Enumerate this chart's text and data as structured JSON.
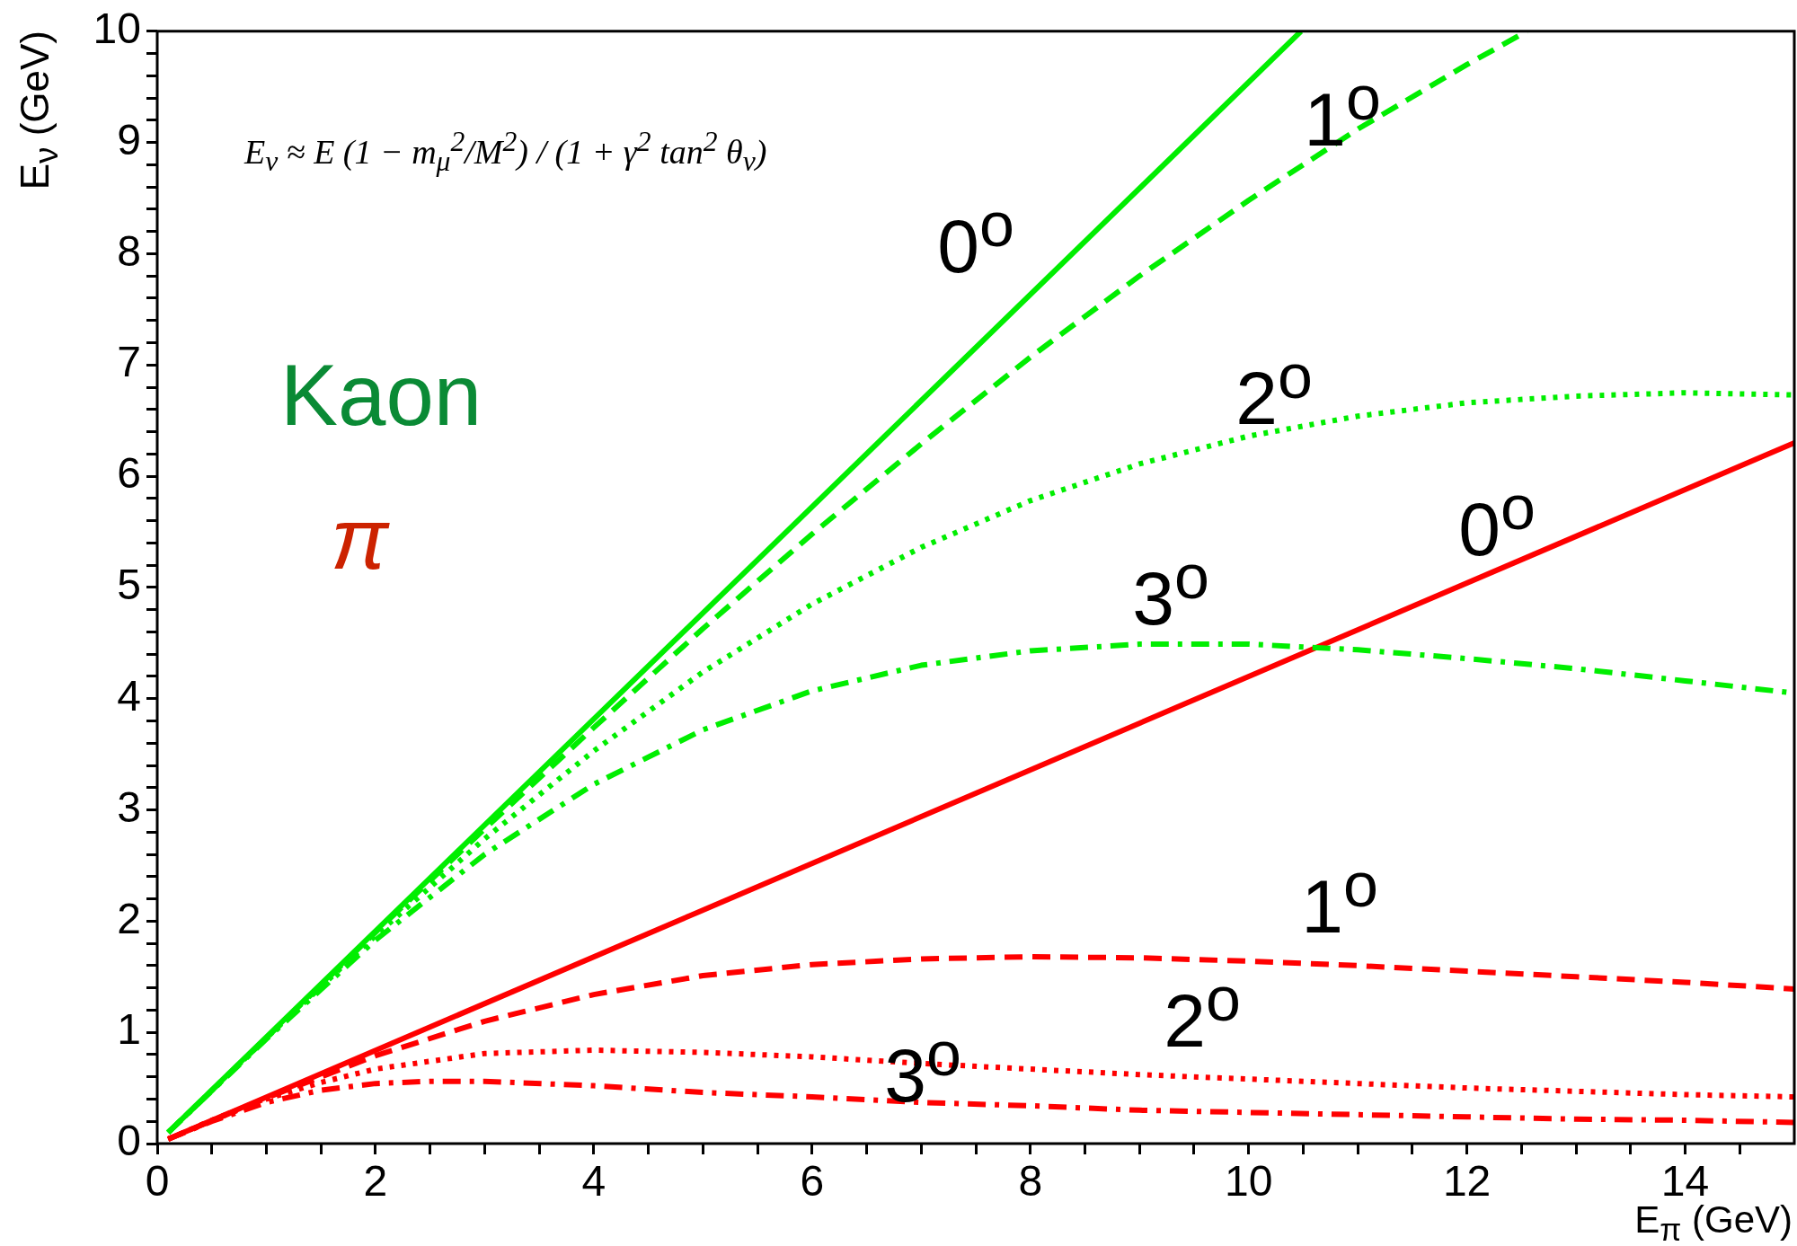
{
  "chart_data": {
    "type": "line",
    "xlabel": "E$_{π}$ (GeV)",
    "ylabel": "E$_{ν}$ (GeV)",
    "xlim": [
      0,
      15
    ],
    "ylim": [
      0,
      10
    ],
    "xticks": [
      0,
      {
        "value": 0.5,
        "label": null
      },
      {
        "value": 1,
        "label": null
      },
      {
        "value": 1.5,
        "label": null
      },
      2,
      {
        "value": 2.5,
        "label": null
      },
      {
        "value": 3,
        "label": null
      },
      {
        "value": 3.5,
        "label": null
      },
      4,
      {
        "value": 4.5,
        "label": null
      },
      {
        "value": 5,
        "label": null
      },
      {
        "value": 5.5,
        "label": null
      },
      6,
      {
        "value": 6.5,
        "label": null
      },
      {
        "value": 7,
        "label": null
      },
      {
        "value": 7.5,
        "label": null
      },
      8,
      {
        "value": 8.5,
        "label": null
      },
      {
        "value": 9,
        "label": null
      },
      {
        "value": 9.5,
        "label": null
      },
      10,
      {
        "value": 10.5,
        "label": null
      },
      {
        "value": 11,
        "label": null
      },
      {
        "value": 11.5,
        "label": null
      },
      12,
      {
        "value": 12.5,
        "label": null
      },
      {
        "value": 13,
        "label": null
      },
      {
        "value": 13.5,
        "label": null
      },
      14,
      {
        "value": 14.5,
        "label": null
      }
    ],
    "yticks": [
      0,
      {
        "value": 0.2,
        "label": null
      },
      {
        "value": 0.4,
        "label": null
      },
      {
        "value": 0.6,
        "label": null
      },
      {
        "value": 0.8,
        "label": null
      },
      1,
      {
        "value": 1.2,
        "label": null
      },
      {
        "value": 1.4,
        "label": null
      },
      {
        "value": 1.6,
        "label": null
      },
      {
        "value": 1.8,
        "label": null
      },
      2,
      {
        "value": 2.2,
        "label": null
      },
      {
        "value": 2.4,
        "label": null
      },
      {
        "value": 2.6,
        "label": null
      },
      {
        "value": 2.8,
        "label": null
      },
      3,
      {
        "value": 3.2,
        "label": null
      },
      {
        "value": 3.4,
        "label": null
      },
      {
        "value": 3.6,
        "label": null
      },
      {
        "value": 3.8,
        "label": null
      },
      4,
      {
        "value": 4.2,
        "label": null
      },
      {
        "value": 4.4,
        "label": null
      },
      {
        "value": 4.6,
        "label": null
      },
      {
        "value": 4.8,
        "label": null
      },
      5,
      {
        "value": 5.2,
        "label": null
      },
      {
        "value": 5.4,
        "label": null
      },
      {
        "value": 5.6,
        "label": null
      },
      {
        "value": 5.8,
        "label": null
      },
      6,
      {
        "value": 6.2,
        "label": null
      },
      {
        "value": 6.4,
        "label": null
      },
      {
        "value": 6.6,
        "label": null
      },
      {
        "value": 6.8,
        "label": null
      },
      7,
      {
        "value": 7.2,
        "label": null
      },
      {
        "value": 7.4,
        "label": null
      },
      {
        "value": 7.6,
        "label": null
      },
      {
        "value": 7.8,
        "label": null
      },
      8,
      {
        "value": 8.2,
        "label": null
      },
      {
        "value": 8.4,
        "label": null
      },
      {
        "value": 8.6,
        "label": null
      },
      {
        "value": 8.8,
        "label": null
      },
      9,
      {
        "value": 9.2,
        "label": null
      },
      {
        "value": 9.4,
        "label": null
      },
      {
        "value": 9.6,
        "label": null
      },
      {
        "value": 9.8,
        "label": null
      },
      10
    ],
    "series": [
      {
        "color": "#00ee00",
        "line_style": "solid",
        "x": [
          0.1,
          5,
          10.48
        ],
        "values": [
          0.1,
          4.77,
          10.0
        ]
      },
      {
        "color": "#00ee00",
        "line_style": "dashed",
        "x": [
          0.1,
          1,
          2,
          3,
          4,
          5,
          6,
          7,
          8,
          9,
          10,
          11,
          12,
          12.55
        ],
        "values": [
          0.1,
          0.95,
          1.9,
          2.83,
          3.74,
          4.63,
          5.48,
          6.29,
          7.07,
          7.8,
          8.48,
          9.12,
          9.7,
          10.0
        ]
      },
      {
        "color": "#00ee00",
        "line_style": "dotted",
        "x": [
          0.1,
          1,
          2,
          3,
          4,
          5,
          6,
          7,
          8,
          9,
          10,
          11,
          12,
          13,
          14,
          15
        ],
        "values": [
          0.1,
          0.95,
          1.87,
          2.74,
          3.53,
          4.24,
          4.85,
          5.36,
          5.78,
          6.11,
          6.36,
          6.54,
          6.66,
          6.72,
          6.75,
          6.73
        ]
      },
      {
        "color": "#00ee00",
        "line_style": "dashdot",
        "x": [
          0.1,
          1,
          2,
          3,
          4,
          5,
          6,
          7,
          8,
          9,
          10,
          11,
          12,
          13,
          14,
          15
        ],
        "values": [
          0.1,
          0.94,
          1.83,
          2.6,
          3.23,
          3.72,
          4.07,
          4.3,
          4.43,
          4.49,
          4.49,
          4.44,
          4.36,
          4.27,
          4.16,
          4.05
        ]
      },
      {
        "color": "#ff0000",
        "line_style": "solid",
        "x": [
          0.1,
          15
        ],
        "values": [
          0.04,
          6.3
        ]
      },
      {
        "color": "#ff0000",
        "line_style": "dashed",
        "x": [
          0.1,
          1,
          2,
          3,
          4,
          5,
          6,
          7,
          8,
          9,
          10,
          11,
          12,
          13,
          14,
          15
        ],
        "values": [
          0.04,
          0.41,
          0.79,
          1.1,
          1.34,
          1.51,
          1.61,
          1.66,
          1.68,
          1.67,
          1.64,
          1.6,
          1.55,
          1.5,
          1.45,
          1.39
        ]
      },
      {
        "color": "#ff0000",
        "line_style": "dotted",
        "x": [
          0.1,
          0.5,
          1,
          1.5,
          2,
          3,
          4,
          5,
          6,
          7,
          8,
          9,
          10,
          11,
          12,
          13,
          14,
          15
        ],
        "values": [
          0.04,
          0.21,
          0.4,
          0.55,
          0.67,
          0.81,
          0.84,
          0.82,
          0.78,
          0.72,
          0.67,
          0.62,
          0.58,
          0.54,
          0.5,
          0.47,
          0.44,
          0.42
        ]
      },
      {
        "color": "#ff0000",
        "line_style": "dashdot",
        "x": [
          0.1,
          0.5,
          1,
          1.5,
          2,
          2.5,
          3,
          4,
          5,
          6,
          7,
          8,
          9,
          10,
          11,
          12,
          13,
          14,
          15
        ],
        "values": [
          0.04,
          0.2,
          0.37,
          0.48,
          0.54,
          0.56,
          0.56,
          0.52,
          0.46,
          0.42,
          0.37,
          0.34,
          0.3,
          0.28,
          0.26,
          0.24,
          0.22,
          0.21,
          0.19
        ]
      }
    ],
    "annotations": [
      "E$_{ν}$ ≈ E (1 − m$_{μ}$$^{2}$/M$^{2}$) / (1 + γ$^{2}$ tan$^{2}$ θ$_{ν}$)",
      "Kaon",
      "π",
      "0$^{o}$",
      "1$^{o}$",
      "2$^{o}$",
      "3$^{o}$",
      "0$^{o}$",
      "1$^{o}$",
      "2$^{o}$",
      "3$^{o}$"
    ]
  }
}
